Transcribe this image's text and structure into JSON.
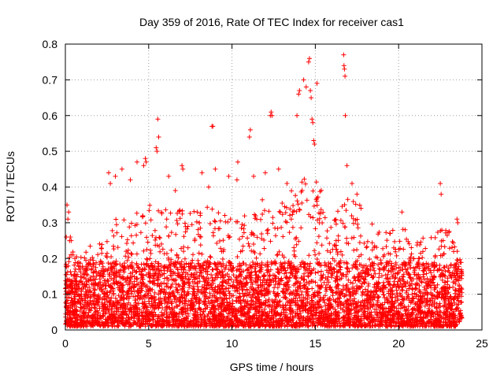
{
  "chart_data": {
    "type": "scatter",
    "title": "Day 359 of 2016, Rate Of TEC Index for receiver cas1",
    "xlabel": "GPS time / hours",
    "ylabel": "ROTI / TECUs",
    "xlim": [
      0,
      25
    ],
    "ylim": [
      0,
      0.8
    ],
    "x_ticks": [
      "0",
      "5",
      "10",
      "15",
      "20",
      "25"
    ],
    "y_ticks": [
      "0",
      "0.1",
      "0.2",
      "0.3",
      "0.4",
      "0.5",
      "0.6",
      "0.7",
      "0.8"
    ],
    "grid": true,
    "marker": "+",
    "color": "#ff0000",
    "series": [
      {
        "name": "ROTI",
        "x": [
          0.05,
          0.1,
          0.15,
          0.2,
          0.25,
          0.3,
          0.35,
          5.55,
          5.6,
          5.5,
          5.45,
          8.8,
          8.85,
          11.05,
          11.1,
          12.3,
          12.35,
          12.4,
          13.9,
          14.0,
          14.05,
          14.3,
          14.45,
          14.6,
          14.65,
          14.7,
          14.75,
          14.8,
          14.85,
          14.9,
          14.95,
          15.1,
          16.7,
          16.72,
          16.75,
          16.78,
          16.8,
          4.7,
          4.8,
          4.85,
          7.0,
          7.05,
          9.0,
          9.8,
          10.3,
          10.35,
          11.3,
          12.0,
          12.8,
          13.3,
          16.9,
          17.2,
          17.5,
          19.5,
          20.2,
          22.5,
          22.55,
          23.5,
          23.55,
          2.6,
          2.7,
          3.0,
          3.4,
          3.9,
          4.3,
          6.2,
          6.6,
          8.2,
          8.6
        ],
        "y": [
          0.26,
          0.35,
          0.31,
          0.33,
          0.25,
          0.26,
          0.25,
          0.59,
          0.54,
          0.5,
          0.51,
          0.57,
          0.57,
          0.54,
          0.56,
          0.6,
          0.61,
          0.6,
          0.6,
          0.66,
          0.67,
          0.7,
          0.68,
          0.75,
          0.76,
          0.67,
          0.65,
          0.59,
          0.58,
          0.53,
          0.52,
          0.69,
          0.77,
          0.74,
          0.73,
          0.71,
          0.6,
          0.46,
          0.48,
          0.47,
          0.46,
          0.45,
          0.45,
          0.43,
          0.42,
          0.47,
          0.43,
          0.44,
          0.45,
          0.41,
          0.46,
          0.41,
          0.38,
          0.27,
          0.33,
          0.41,
          0.38,
          0.31,
          0.3,
          0.44,
          0.41,
          0.43,
          0.45,
          0.42,
          0.47,
          0.43,
          0.39,
          0.44,
          0.4
        ]
      }
    ],
    "density_envelope": {
      "description": "dense background scatter; typical upper extent of points per hour",
      "hours": [
        0,
        1,
        2,
        3,
        4,
        5,
        6,
        7,
        8,
        9,
        10,
        11,
        12,
        13,
        14,
        15,
        16,
        17,
        18,
        19,
        20,
        21,
        22,
        23,
        24
      ],
      "upper_values": [
        0.2,
        0.2,
        0.23,
        0.3,
        0.3,
        0.33,
        0.32,
        0.32,
        0.32,
        0.34,
        0.3,
        0.33,
        0.35,
        0.34,
        0.4,
        0.42,
        0.3,
        0.35,
        0.32,
        0.25,
        0.28,
        0.24,
        0.25,
        0.27,
        0.15
      ]
    }
  }
}
